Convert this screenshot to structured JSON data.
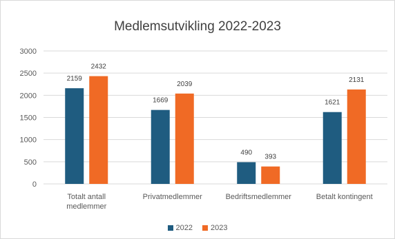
{
  "chart_data": {
    "type": "bar",
    "title": "Medlemsutvikling 2022-2023",
    "categories": [
      [
        "Totalt antall",
        "medlemmer"
      ],
      [
        "Privatmedlemmer"
      ],
      [
        "Bedriftsmedlemmer"
      ],
      [
        "Betalt kontingent"
      ]
    ],
    "series": [
      {
        "name": "2022",
        "color": "#1f5c80",
        "values": [
          2159,
          1669,
          490,
          1621
        ]
      },
      {
        "name": "2023",
        "color": "#f06a25",
        "values": [
          2432,
          2039,
          393,
          2131
        ]
      }
    ],
    "ylim": [
      0,
      3000
    ],
    "yticks": [
      "0",
      "500",
      "1000",
      "1500",
      "2000",
      "2500",
      "3000"
    ],
    "grid": true,
    "legend_position": "bottom"
  }
}
